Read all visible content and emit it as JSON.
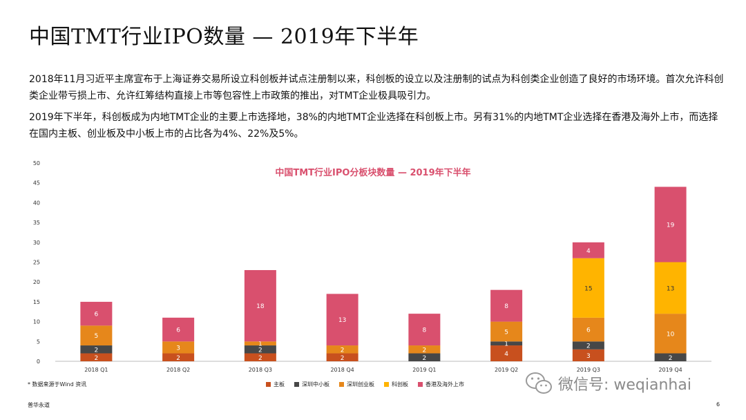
{
  "header": {
    "title": "中国TMT行业IPO数量 — 2019年下半年"
  },
  "paragraphs": [
    "2018年11月习近平主席宣布于上海证券交易所设立科创板并试点注册制以来，科创板的设立以及注册制的试点为科创类企业创造了良好的市场环境。首次允许科创类企业带亏损上市、允许红筹结构直接上市等包容性上市政策的推出，对TMT企业极具吸引力。",
    "2019年下半年，科创板成为内地TMT企业的主要上市选择地，38%的内地TMT企业选择在科创板上市。另有31%的内地TMT企业选择在香港及海外上市，而选择在国内主板、创业板及中小板上市的占比各为4%、22%及5%。"
  ],
  "chart_data": {
    "type": "bar",
    "stacked": true,
    "title": "中国TMT行业IPO分板块数量 — 2019年下半年",
    "categories": [
      "2018 Q1",
      "2018 Q2",
      "2018 Q3",
      "2018 Q4",
      "2019 Q1",
      "2019 Q2",
      "2019 Q3",
      "2019 Q4"
    ],
    "ylim": [
      0,
      50
    ],
    "yticks": [
      0,
      5,
      10,
      15,
      20,
      25,
      30,
      35,
      40,
      45,
      50
    ],
    "legend_position": "bottom",
    "series": [
      {
        "name": "主板",
        "color": "#C8501E",
        "values": [
          2,
          2,
          2,
          2,
          0,
          4,
          3,
          0
        ],
        "labels": [
          "2",
          "2",
          "2",
          "2",
          "",
          "4",
          "3",
          ""
        ]
      },
      {
        "name": "深圳中小板",
        "color": "#474747",
        "values": [
          2,
          0,
          2,
          0,
          2,
          1,
          2,
          2
        ],
        "labels": [
          "2",
          "",
          "2",
          "",
          "2",
          "1",
          "2",
          "2"
        ]
      },
      {
        "name": "深圳创业板",
        "color": "#E6871B",
        "values": [
          5,
          3,
          1,
          2,
          2,
          5,
          6,
          10
        ],
        "labels": [
          "5",
          "3",
          "1",
          "2",
          "2",
          "5",
          "6",
          "10"
        ]
      },
      {
        "name": "科创板",
        "color": "#FFB400",
        "values": [
          0,
          0,
          0,
          0,
          0,
          0,
          15,
          13
        ],
        "labels": [
          "",
          "",
          "",
          "",
          "",
          "",
          "15",
          "13"
        ]
      },
      {
        "name": "香港及海外上市",
        "color": "#D9506E",
        "values": [
          6,
          6,
          18,
          13,
          8,
          8,
          4,
          19
        ],
        "labels": [
          "6",
          "6",
          "18",
          "13",
          "8",
          "8",
          "4",
          "19"
        ]
      }
    ]
  },
  "footnote": "* 数据来源于Wind 资讯",
  "watermark": "微信号: weqianhai",
  "brand": "普华永道",
  "page_number": "6"
}
